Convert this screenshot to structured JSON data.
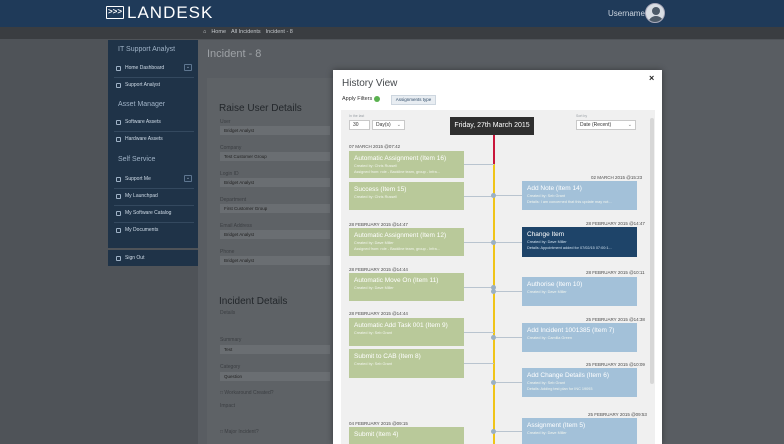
{
  "app": {
    "name": "LANDESK",
    "logo_glyph": ">>>",
    "username": "Username"
  },
  "breadcrumb": [
    "Home",
    "All Incidents",
    "Incident - 8"
  ],
  "sidebar": {
    "sections": [
      {
        "title": "IT Support Analyst",
        "items": [
          {
            "label": "Home Dashboard",
            "expand": "⌄"
          },
          {
            "label": "Support Analyst"
          }
        ]
      },
      {
        "title": "Asset Manager",
        "items": [
          {
            "label": "Software Assets"
          },
          {
            "label": "Hardware Assets"
          }
        ]
      },
      {
        "title": "Self Service",
        "items": [
          {
            "label": "Support Me",
            "expand": "⌄"
          },
          {
            "label": "My Launchpad"
          },
          {
            "label": "My Software Catalog"
          },
          {
            "label": "My Documents"
          }
        ]
      }
    ],
    "signout": "Sign Out"
  },
  "page": {
    "title": "Incident - 8",
    "raise": {
      "title": "Raise User Details",
      "fields": [
        {
          "label": "User",
          "value": "Bridget Analyst"
        },
        {
          "label": "Company",
          "value": "Test Customer Group"
        },
        {
          "label": "Login ID",
          "value": "Bridget Analyst"
        },
        {
          "label": "Department",
          "value": "First Customer Group"
        },
        {
          "label": "Email Address",
          "value": "Bridget Analyst"
        },
        {
          "label": "Phone",
          "value": "Bridget Analyst"
        }
      ]
    },
    "incident": {
      "title": "Incident Details",
      "subtitle": "Details",
      "fields": [
        {
          "label": "Summary",
          "value": "Test"
        },
        {
          "label": "Category",
          "value": "Question"
        }
      ],
      "checks": [
        "Workaround Created?",
        "Major Incident?"
      ],
      "extra_label": "Impact"
    }
  },
  "modal": {
    "title": "History View",
    "close": "×",
    "apply_filters": "Apply Filters",
    "filter_chip": "Assignments type",
    "controls": {
      "left_label": "In the last",
      "num": "30",
      "unit": "Day(s)",
      "right_label": "Sort by",
      "sort": "Date (Recent)",
      "chevron": "⌄"
    },
    "current_date": "Friday, 27th March 2015",
    "left_events": [
      {
        "date": "07 MARCH 2015 @07:42",
        "title": "Automatic Assignment (Item 16)",
        "lines": [
          "Created by: Chris Russell",
          "Assigned from: role - Backline team, group - Infra..."
        ]
      },
      {
        "title": "Success (Item 15)",
        "lines": [
          "Created by: Chris Russell"
        ]
      },
      {
        "date": "28 FEBRUARY 2015 @14:47",
        "title": "Automatic Assignment (Item 12)",
        "lines": [
          "Created by: Dave Miller",
          "Assigned from: role - Backline team, group - Infra..."
        ]
      },
      {
        "date": "28 FEBRUARY 2015 @14:44",
        "title": "Automatic Move On (Item 11)",
        "lines": [
          "Created by: Dave Miller"
        ]
      },
      {
        "date": "28 FEBRUARY 2015 @14:44",
        "title": "Automatic Add Task 001 (Item 9)",
        "lines": [
          "Created by: Seb Grant"
        ]
      },
      {
        "title": "Submit to CAB (Item 8)",
        "lines": [
          "Created by: Seb Grant"
        ]
      },
      {
        "date": "04 FEBRUARY 2015 @09:15",
        "title": "Submit (Item 4)",
        "lines": []
      }
    ],
    "right_events": [
      {
        "date": "02 MARCH 2015 @15:23",
        "title": "Add Note (Item 14)",
        "lines": [
          "Created by: Seb Grant",
          "Details: I am concerned that this update may not..."
        ]
      },
      {
        "date": "28 FEBRUARY 2015 @14:47",
        "title": "Change Item",
        "lines": [
          "Created by: Dave Miller",
          "Details: Appointment added for 07/02/15 07:00:1..."
        ]
      },
      {
        "date": "28 FEBRUARY 2015 @10:11",
        "title": "Authorise (Item 10)",
        "lines": [
          "Created by: Dave Miller"
        ]
      },
      {
        "date": "25 FEBRUARY 2015 @14:38",
        "title": "Add Incident 1001385 (Item 7)",
        "lines": [
          "Created by: Camilla Green"
        ]
      },
      {
        "date": "25 FEBRUARY 2015 @10:09",
        "title": "Add Change Details (Item 6)",
        "lines": [
          "Created by: Seb Grant",
          "Details: Adding test plan for INC 19093"
        ]
      },
      {
        "date": "25 FEBRUARY 2015 @09:53",
        "title": "Assignment (Item 5)",
        "lines": [
          "Created by: Dave Miller"
        ]
      }
    ]
  }
}
